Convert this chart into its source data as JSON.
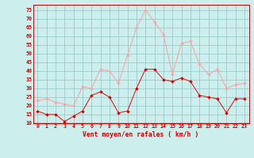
{
  "hours": [
    0,
    1,
    2,
    3,
    4,
    5,
    6,
    7,
    8,
    9,
    10,
    11,
    12,
    13,
    14,
    15,
    16,
    17,
    18,
    19,
    20,
    21,
    22,
    23
  ],
  "wind_avg": [
    17,
    15,
    15,
    11,
    14,
    17,
    26,
    28,
    25,
    16,
    17,
    30,
    41,
    41,
    35,
    34,
    36,
    34,
    26,
    25,
    24,
    16,
    24,
    24
  ],
  "wind_gust": [
    23,
    24,
    22,
    21,
    20,
    31,
    30,
    41,
    40,
    33,
    49,
    65,
    75,
    68,
    61,
    38,
    56,
    57,
    44,
    38,
    41,
    30,
    32,
    33
  ],
  "bg_color": "#cceeed",
  "grid_color": "#99cccc",
  "line_avg_color": "#dd2222",
  "line_gust_color": "#f4aaaa",
  "marker_color_avg": "#cc0000",
  "marker_color_gust": "#f4aaaa",
  "xlabel": "Vent moyen/en rafales ( km/h )",
  "xlabel_color": "#cc0000",
  "tick_color": "#cc0000",
  "ylim": [
    10,
    78
  ],
  "yticks": [
    10,
    15,
    20,
    25,
    30,
    35,
    40,
    45,
    50,
    55,
    60,
    65,
    70,
    75
  ],
  "spine_color": "#cc0000",
  "axis_color": "#cc0000"
}
